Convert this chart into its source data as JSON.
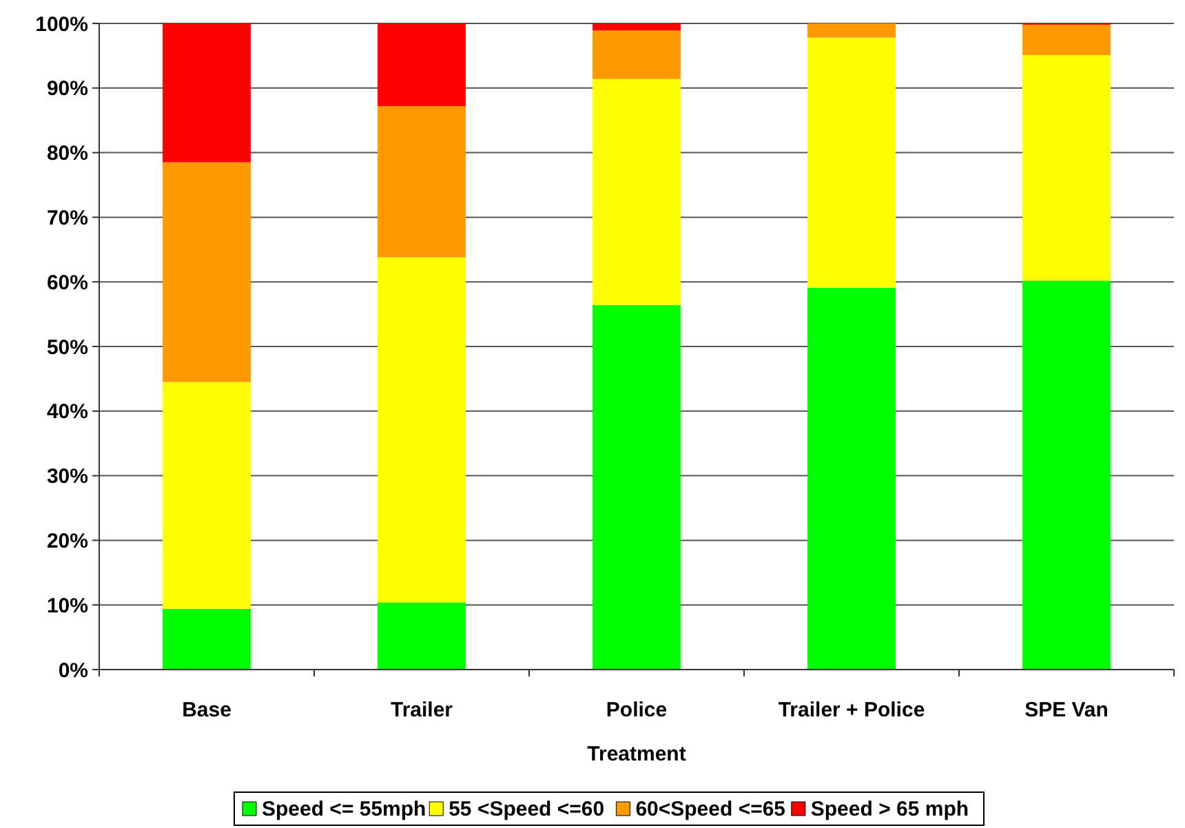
{
  "chart_data": {
    "type": "bar",
    "stacked": true,
    "xlabel": "Treatment",
    "categories": [
      "Base",
      "Trailer",
      "Police",
      "Trailer + Police",
      "SPE Van"
    ],
    "series": [
      {
        "name": "Speed <= 55mph",
        "color": "#00ff00",
        "values": [
          9.4,
          10.4,
          56.4,
          59.1,
          60.2
        ]
      },
      {
        "name": "55 <Speed <=60",
        "color": "#ffff00",
        "values": [
          35.1,
          53.4,
          35.0,
          38.7,
          34.9
        ]
      },
      {
        "name": "60<Speed <=65",
        "color": "#ff9900",
        "values": [
          34.0,
          23.4,
          7.5,
          2.2,
          4.7
        ]
      },
      {
        "name": "Speed > 65 mph",
        "color": "#ff0000",
        "values": [
          21.5,
          12.8,
          1.1,
          0,
          0.2
        ]
      }
    ],
    "ylim": [
      0,
      100
    ],
    "yticks": [
      {
        "value": 0,
        "label": "0%"
      },
      {
        "value": 10,
        "label": "10%"
      },
      {
        "value": 20,
        "label": "20%"
      },
      {
        "value": 30,
        "label": "30%"
      },
      {
        "value": 40,
        "label": "40%"
      },
      {
        "value": 50,
        "label": "50%"
      },
      {
        "value": 60,
        "label": "60%"
      },
      {
        "value": 70,
        "label": "70%"
      },
      {
        "value": 80,
        "label": "80%"
      },
      {
        "value": 90,
        "label": "90%"
      },
      {
        "value": 100,
        "label": "100%"
      }
    ],
    "grid": "y",
    "legend": "bottom"
  }
}
